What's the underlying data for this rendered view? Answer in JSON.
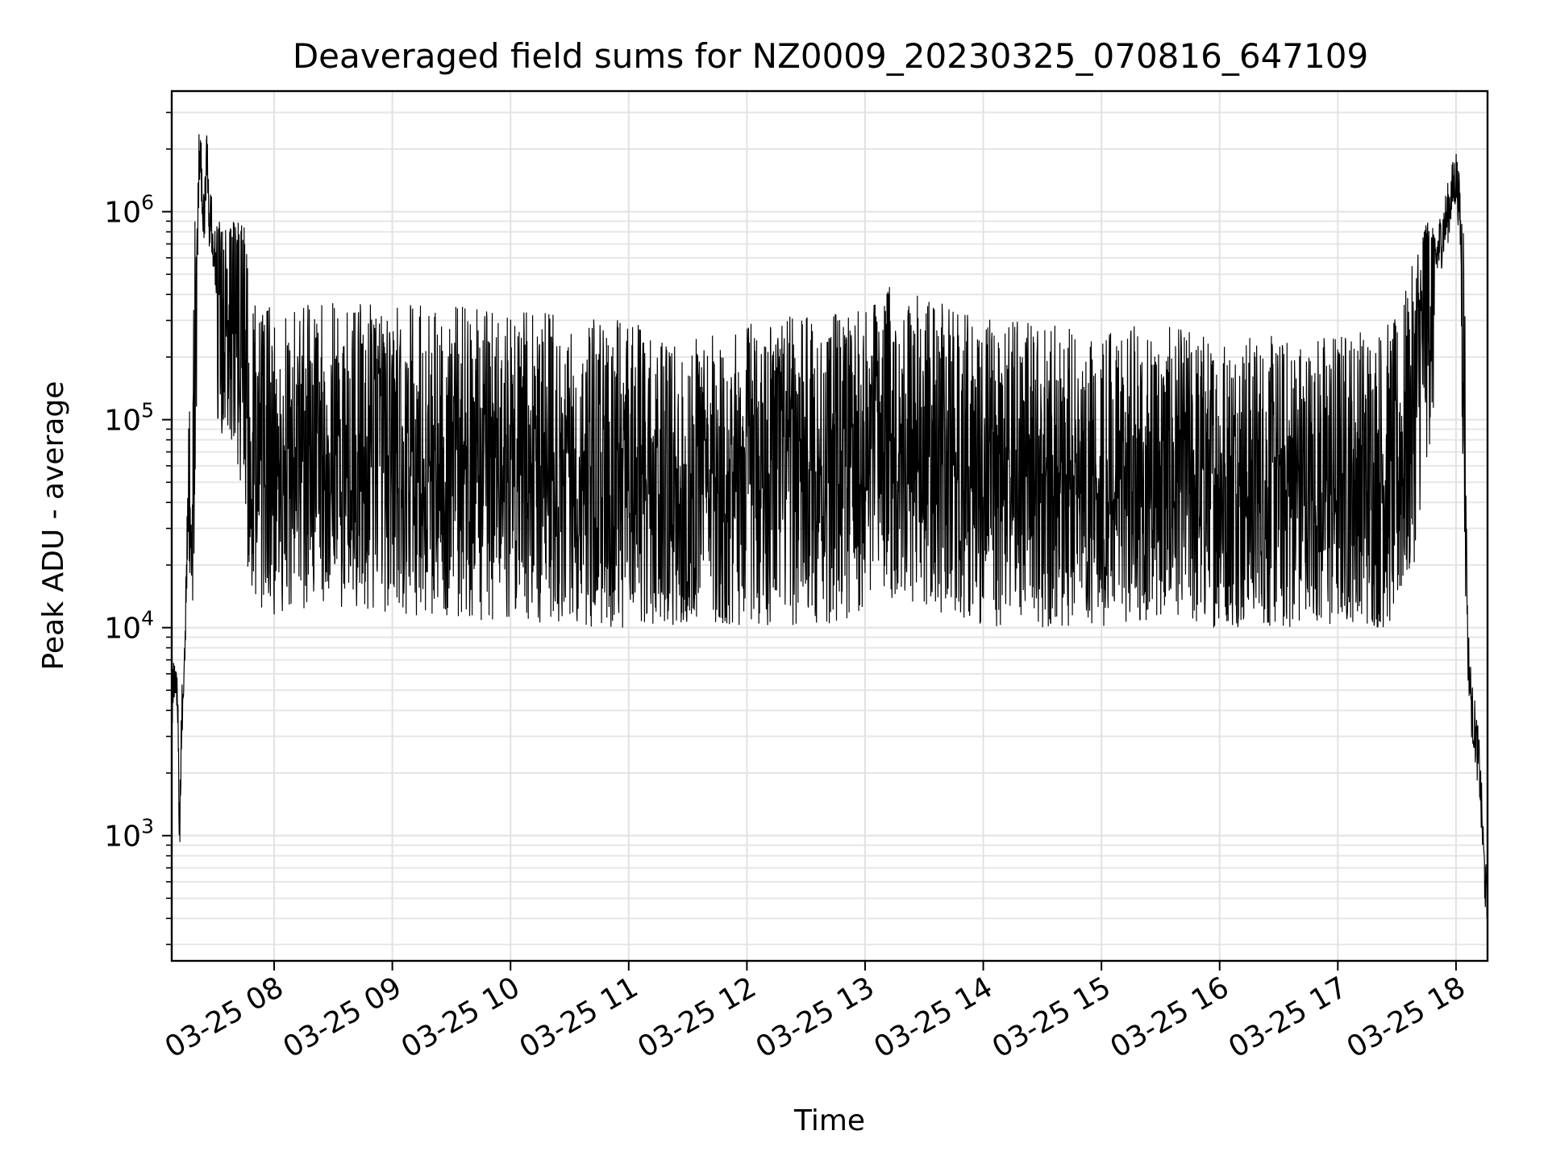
{
  "chart_data": {
    "type": "line",
    "title": "Deaveraged field sums for NZ0009_20230325_070816_647109",
    "xlabel": "Time",
    "ylabel": "Peak ADU - average",
    "x_scale": "time",
    "y_scale": "log",
    "xlim": [
      "2023-03-25 07:08",
      "2023-03-25 18:16"
    ],
    "ylim": [
      250,
      3800000
    ],
    "grid": true,
    "grid_minor_y": true,
    "x_tick_labels": [
      "03-25 08",
      "03-25 09",
      "03-25 10",
      "03-25 11",
      "03-25 12",
      "03-25 13",
      "03-25 14",
      "03-25 15",
      "03-25 16",
      "03-25 17",
      "03-25 18"
    ],
    "x_ticks": [
      "2023-03-25 08:00",
      "2023-03-25 09:00",
      "2023-03-25 10:00",
      "2023-03-25 11:00",
      "2023-03-25 12:00",
      "2023-03-25 13:00",
      "2023-03-25 14:00",
      "2023-03-25 15:00",
      "2023-03-25 16:00",
      "2023-03-25 17:00",
      "2023-03-25 18:00"
    ],
    "y_ticks": [
      1000,
      10000,
      100000,
      1000000
    ],
    "y_tick_labels": [
      {
        "base": "10",
        "exp": "3"
      },
      {
        "base": "10",
        "exp": "4"
      },
      {
        "base": "10",
        "exp": "5"
      },
      {
        "base": "10",
        "exp": "6"
      }
    ],
    "line_color": "#000000",
    "series": [
      {
        "x": [
          "2023-03-25 07:08",
          "2023-03-25 07:10",
          "2023-03-25 07:11",
          "2023-03-25 07:12",
          "2023-03-25 07:13",
          "2023-03-25 07:14",
          "2023-03-25 07:15",
          "2023-03-25 07:16",
          "2023-03-25 07:17",
          "2023-03-25 07:18",
          "2023-03-25 07:19",
          "2023-03-25 07:20",
          "2023-03-25 07:21",
          "2023-03-25 07:22",
          "2023-03-25 07:23",
          "2023-03-25 07:24",
          "2023-03-25 07:25",
          "2023-03-25 07:26",
          "2023-03-25 07:27",
          "2023-03-25 07:28",
          "2023-03-25 07:29",
          "2023-03-25 07:30",
          "2023-03-25 07:32",
          "2023-03-25 07:35",
          "2023-03-25 07:38",
          "2023-03-25 07:41",
          "2023-03-25 07:44",
          "2023-03-25 07:47",
          "2023-03-25 07:50",
          "2023-03-25 07:53",
          "2023-03-25 07:56",
          "2023-03-25 08:00",
          "2023-03-25 08:30",
          "2023-03-25 09:00",
          "2023-03-25 10:00",
          "2023-03-25 11:00",
          "2023-03-25 11:25",
          "2023-03-25 12:00",
          "2023-03-25 13:00",
          "2023-03-25 13:10",
          "2023-03-25 14:00",
          "2023-03-25 15:00",
          "2023-03-25 16:00",
          "2023-03-25 16:30",
          "2023-03-25 17:00",
          "2023-03-25 17:30",
          "2023-03-25 17:38",
          "2023-03-25 17:44",
          "2023-03-25 17:50",
          "2023-03-25 17:56",
          "2023-03-25 18:00",
          "2023-03-25 18:02",
          "2023-03-25 18:04",
          "2023-03-25 18:06",
          "2023-03-25 18:08",
          "2023-03-25 18:10",
          "2023-03-25 18:12",
          "2023-03-25 18:14",
          "2023-03-25 18:16"
        ],
        "y": [
          4500,
          5500,
          5000,
          1000,
          3500,
          6000,
          12000,
          30000,
          50000,
          20000,
          60000,
          250000,
          700000,
          2000000,
          1500000,
          900000,
          1200000,
          1800000,
          800000,
          1000000,
          700000,
          600000,
          500000,
          400000,
          450000,
          300000,
          200000,
          100000,
          80000,
          60000,
          70000,
          60000,
          70000,
          65000,
          60000,
          55000,
          40000,
          55000,
          60000,
          80000,
          55000,
          50000,
          50000,
          45000,
          50000,
          55000,
          100000,
          300000,
          600000,
          1000000,
          1500000,
          1000000,
          200000,
          8000,
          4000,
          3000,
          2000,
          800,
          400
        ],
        "noise_envelope": {
          "lower": 10000,
          "upper": 900000
        }
      }
    ]
  }
}
